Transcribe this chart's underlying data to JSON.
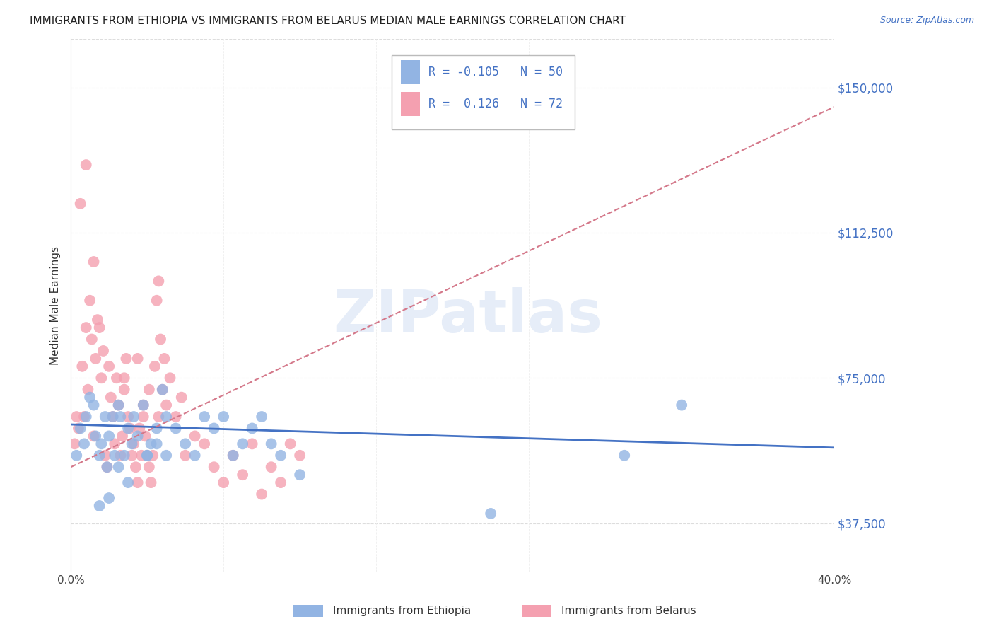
{
  "title": "IMMIGRANTS FROM ETHIOPIA VS IMMIGRANTS FROM BELARUS MEDIAN MALE EARNINGS CORRELATION CHART",
  "source": "Source: ZipAtlas.com",
  "ylabel": "Median Male Earnings",
  "x_min": 0.0,
  "x_max": 0.4,
  "y_min": 25000,
  "y_max": 162500,
  "yticks": [
    37500,
    75000,
    112500,
    150000
  ],
  "ytick_labels": [
    "$37,500",
    "$75,000",
    "$112,500",
    "$150,000"
  ],
  "xticks": [
    0.0,
    0.08,
    0.16,
    0.24,
    0.32,
    0.4
  ],
  "xtick_labels": [
    "0.0%",
    "",
    "",
    "",
    "",
    "40.0%"
  ],
  "color_ethiopia": "#92B4E3",
  "color_belarus": "#F4A0B0",
  "color_line_ethiopia": "#4472C4",
  "color_line_belarus": "#D4788A",
  "color_axis_right": "#4472C4",
  "background_color": "#FFFFFF",
  "watermark": "ZIPatlas",
  "eth_line_y0": 63000,
  "eth_line_y1": 57000,
  "bel_line_y0": 52000,
  "bel_line_y1": 145000,
  "ethiopia_x": [
    0.003,
    0.005,
    0.007,
    0.008,
    0.01,
    0.012,
    0.013,
    0.015,
    0.016,
    0.018,
    0.019,
    0.02,
    0.022,
    0.023,
    0.025,
    0.026,
    0.028,
    0.03,
    0.032,
    0.033,
    0.035,
    0.038,
    0.04,
    0.042,
    0.045,
    0.048,
    0.05,
    0.055,
    0.06,
    0.065,
    0.07,
    0.075,
    0.08,
    0.085,
    0.09,
    0.095,
    0.1,
    0.105,
    0.11,
    0.12,
    0.015,
    0.02,
    0.025,
    0.03,
    0.04,
    0.045,
    0.05,
    0.32,
    0.29,
    0.22
  ],
  "ethiopia_y": [
    55000,
    62000,
    58000,
    65000,
    70000,
    68000,
    60000,
    55000,
    58000,
    65000,
    52000,
    60000,
    65000,
    55000,
    68000,
    65000,
    55000,
    62000,
    58000,
    65000,
    60000,
    68000,
    55000,
    58000,
    62000,
    72000,
    65000,
    62000,
    58000,
    55000,
    65000,
    62000,
    65000,
    55000,
    58000,
    62000,
    65000,
    58000,
    55000,
    50000,
    42000,
    44000,
    52000,
    48000,
    55000,
    58000,
    55000,
    68000,
    55000,
    40000
  ],
  "belarus_x": [
    0.002,
    0.003,
    0.004,
    0.005,
    0.006,
    0.007,
    0.008,
    0.009,
    0.01,
    0.011,
    0.012,
    0.013,
    0.014,
    0.015,
    0.016,
    0.017,
    0.018,
    0.019,
    0.02,
    0.021,
    0.022,
    0.023,
    0.024,
    0.025,
    0.026,
    0.027,
    0.028,
    0.029,
    0.03,
    0.031,
    0.032,
    0.033,
    0.034,
    0.035,
    0.036,
    0.037,
    0.038,
    0.039,
    0.04,
    0.041,
    0.042,
    0.043,
    0.044,
    0.045,
    0.046,
    0.047,
    0.048,
    0.049,
    0.05,
    0.052,
    0.055,
    0.058,
    0.06,
    0.065,
    0.07,
    0.075,
    0.08,
    0.085,
    0.09,
    0.095,
    0.1,
    0.105,
    0.11,
    0.115,
    0.12,
    0.038,
    0.041,
    0.046,
    0.028,
    0.035,
    0.008,
    0.012
  ],
  "belarus_y": [
    58000,
    65000,
    62000,
    120000,
    78000,
    65000,
    88000,
    72000,
    95000,
    85000,
    60000,
    80000,
    90000,
    88000,
    75000,
    82000,
    55000,
    52000,
    78000,
    70000,
    65000,
    58000,
    75000,
    68000,
    55000,
    60000,
    72000,
    80000,
    65000,
    62000,
    55000,
    58000,
    52000,
    48000,
    62000,
    55000,
    65000,
    60000,
    55000,
    52000,
    48000,
    55000,
    78000,
    95000,
    100000,
    85000,
    72000,
    80000,
    68000,
    75000,
    65000,
    70000,
    55000,
    60000,
    58000,
    52000,
    48000,
    55000,
    50000,
    58000,
    45000,
    52000,
    48000,
    58000,
    55000,
    68000,
    72000,
    65000,
    75000,
    80000,
    130000,
    105000
  ]
}
